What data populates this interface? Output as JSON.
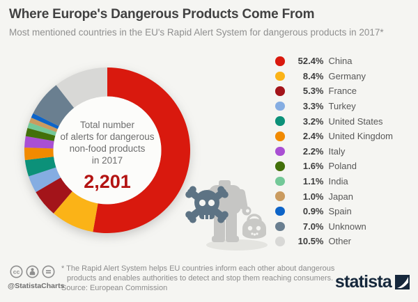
{
  "header": {
    "title": "Where Europe's Dangerous Products Come From",
    "subtitle": "Most mentioned countries in the EU's Rapid Alert System for dangerous products in 2017*"
  },
  "chart_data": {
    "type": "pie",
    "style": "donut",
    "title": "Where Europe's Dangerous Products Come From",
    "unit": "%",
    "start_angle_deg": 0,
    "direction": "clockwise",
    "legend_position": "right",
    "center_label": {
      "lines": [
        "Total number",
        "of alerts for dangerous",
        "non-food products",
        "in 2017"
      ],
      "value": "2,201",
      "value_color": "#b31312"
    },
    "series": [
      {
        "name": "China",
        "value": 52.4,
        "label": "52.4%",
        "color": "#d9190e"
      },
      {
        "name": "Germany",
        "value": 8.4,
        "label": "8.4%",
        "color": "#fbb317"
      },
      {
        "name": "France",
        "value": 5.3,
        "label": "5.3%",
        "color": "#a3141a"
      },
      {
        "name": "Turkey",
        "value": 3.3,
        "label": "3.3%",
        "color": "#85ade2"
      },
      {
        "name": "United States",
        "value": 3.2,
        "label": "3.2%",
        "color": "#0c9179"
      },
      {
        "name": "United Kingdom",
        "value": 2.4,
        "label": "2.4%",
        "color": "#f18a00"
      },
      {
        "name": "Italy",
        "value": 2.2,
        "label": "2.2%",
        "color": "#a94fd3"
      },
      {
        "name": "Poland",
        "value": 1.6,
        "label": "1.6%",
        "color": "#42700a"
      },
      {
        "name": "India",
        "value": 1.1,
        "label": "1.1%",
        "color": "#73c898"
      },
      {
        "name": "Japan",
        "value": 1.0,
        "label": "1.0%",
        "color": "#ca9b60"
      },
      {
        "name": "Spain",
        "value": 0.9,
        "label": "0.9%",
        "color": "#0d64c8"
      },
      {
        "name": "Unknown",
        "value": 7.0,
        "label": "7.0%",
        "color": "#6a7f90"
      },
      {
        "name": "Other",
        "value": 10.5,
        "label": "10.5%",
        "color": "#d8d8d6"
      }
    ]
  },
  "footer": {
    "license_handle": "@StatistaCharts",
    "footnote_line1": "* The Rapid Alert System helps EU countries inform each other about dangerous",
    "footnote_line2": "products and enables authorities to detect and stop them reaching consumers.",
    "source": "Source: European Commission",
    "brand": "statista"
  }
}
